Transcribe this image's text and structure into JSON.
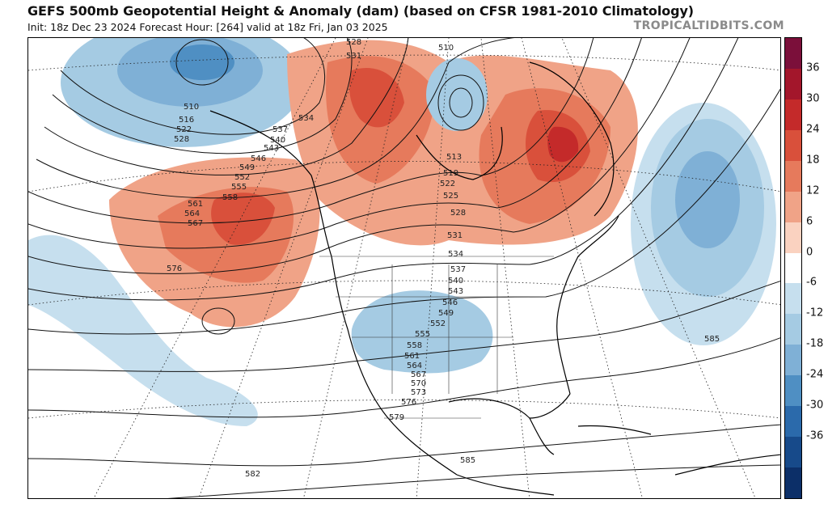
{
  "header": {
    "title": "GEFS 500mb Geopotential Height & Anomaly (dam) (based on CFSR 1981-2010 Climatology)",
    "subtitle": "Init: 18z Dec 23 2024   Forecast Hour: [264]   valid at 18z Fri, Jan 03 2025",
    "brand": "TROPICALTIDBITS.COM"
  },
  "colorbar": {
    "labels": [
      "36",
      "30",
      "24",
      "18",
      "12",
      "6",
      "0",
      "-6",
      "-12",
      "-18",
      "-24",
      "-30",
      "-36"
    ],
    "colors": [
      "#7b0f3a",
      "#a3162b",
      "#c42a2a",
      "#d9503b",
      "#e67a5c",
      "#f0a387",
      "#fad2c0",
      "#ffffff",
      "#c6dfee",
      "#a5cbe3",
      "#7fb0d6",
      "#4f8fc3",
      "#2b6aab",
      "#174a8a",
      "#0c2f68"
    ]
  },
  "map": {
    "contour_labels": [
      "510",
      "516",
      "522",
      "528",
      "531",
      "528",
      "510",
      "534",
      "537",
      "540",
      "543",
      "546",
      "549",
      "552",
      "555",
      "558",
      "561",
      "564",
      "567",
      "576",
      "513",
      "519",
      "522",
      "525",
      "528",
      "531",
      "534",
      "537",
      "540",
      "543",
      "546",
      "549",
      "552",
      "555",
      "558",
      "561",
      "564",
      "567",
      "570",
      "573",
      "576",
      "579",
      "582",
      "585",
      "585"
    ]
  }
}
